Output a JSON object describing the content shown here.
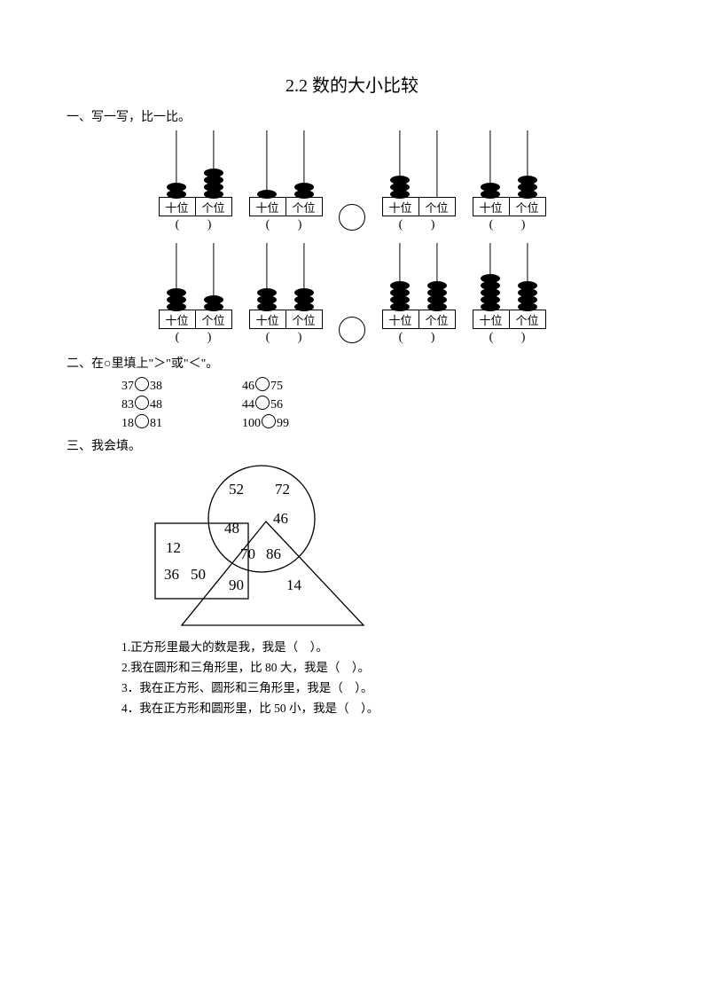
{
  "title": "2.2 数的大小比较",
  "section1": {
    "heading": "一、写一写，比一比。",
    "tens_label": "十位",
    "ones_label": "个位",
    "row1": [
      {
        "tens": 2,
        "ones": 4
      },
      {
        "tens": 1,
        "ones": 2
      },
      {
        "tens": 3,
        "ones": 0
      },
      {
        "tens": 2,
        "ones": 3
      }
    ],
    "row2": [
      {
        "tens": 3,
        "ones": 2
      },
      {
        "tens": 3,
        "ones": 3
      },
      {
        "tens": 4,
        "ones": 4
      },
      {
        "tens": 5,
        "ones": 4
      }
    ],
    "paren": "(   )"
  },
  "section2": {
    "heading": "二、在○里填上\"＞\"或\"＜\"。",
    "pairs": [
      [
        "37",
        "38",
        "46",
        "75"
      ],
      [
        "83",
        "48",
        "44",
        "56"
      ],
      [
        "18",
        "81",
        "100",
        "99"
      ]
    ]
  },
  "section3": {
    "heading": "三、我会填。",
    "numbers": {
      "n52": "52",
      "n72": "72",
      "n48": "48",
      "n46": "46",
      "n12": "12",
      "n70": "70",
      "n86": "86",
      "n36": "36",
      "n50": "50",
      "n90": "90",
      "n14": "14"
    },
    "q1": "1.正方形里最大的数是我，我是（　）。",
    "q2": "2.我在圆形和三角形里，比 80 大，我是（　）。",
    "q3": "3．我在正方形、圆形和三角形里，我是（　）。",
    "q4": "4．我在正方形和圆形里，比 50 小，我是（　）。"
  },
  "colors": {
    "fg": "#000000",
    "bg": "#ffffff"
  }
}
